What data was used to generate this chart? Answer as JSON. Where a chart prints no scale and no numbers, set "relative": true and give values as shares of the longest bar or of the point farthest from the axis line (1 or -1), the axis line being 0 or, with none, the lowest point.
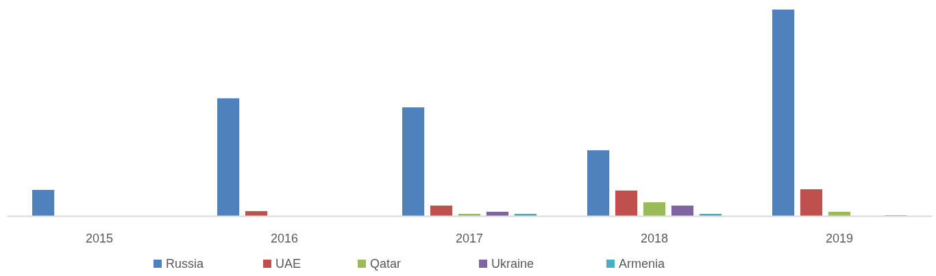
{
  "chart_data": {
    "type": "bar",
    "relative": true,
    "legend": "bottom",
    "categories": [
      "2015",
      "2016",
      "2017",
      "2018",
      "2019"
    ],
    "series": [
      {
        "name": "Russia",
        "color": "#4f81bd",
        "values": [
          0.126,
          0.57,
          0.526,
          0.318,
          1
        ]
      },
      {
        "name": "UAE",
        "color": "#c0504d",
        "values": [
          0,
          0.023,
          0.05,
          0.123,
          0.129
        ]
      },
      {
        "name": "Qatar",
        "color": "#9bbb59",
        "values": [
          0,
          0,
          0.01,
          0.066,
          0.02
        ]
      },
      {
        "name": "Ukraine",
        "color": "#8064a2",
        "values": [
          0,
          0,
          0.02,
          0.05,
          0
        ]
      },
      {
        "name": "Armenia",
        "color": "#4bacc6",
        "values": [
          0,
          null,
          0.01,
          0.01,
          0.003
        ]
      }
    ]
  }
}
